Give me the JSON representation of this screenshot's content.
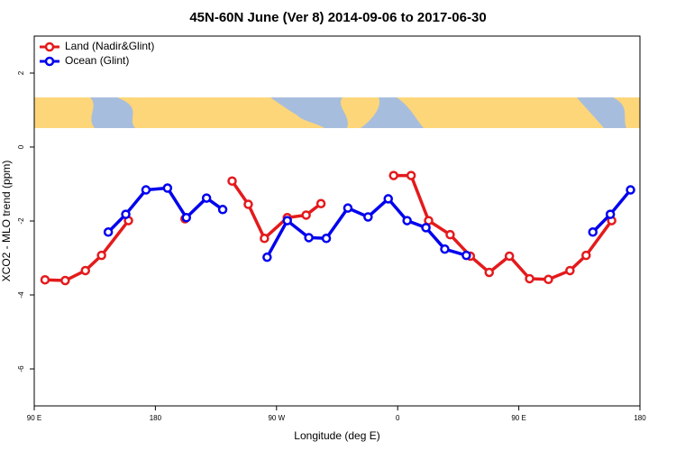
{
  "chart_data": {
    "type": "line",
    "title": "45N-60N June (Ver 8)   2014-09-06 to 2017-06-30",
    "x_label": "Longitude (deg E)",
    "y_label": "XCO2 - MLO trend (ppm)",
    "xlim": [
      90,
      540
    ],
    "xticks": [
      {
        "value": 90,
        "label": "90 E"
      },
      180,
      {
        "value": 270,
        "label": "90 W"
      },
      {
        "value": 360,
        "label": "0"
      },
      {
        "value": 450,
        "label": "90 E"
      },
      {
        "value": 540,
        "label": "180"
      }
    ],
    "ylim": [
      -7,
      3
    ],
    "yticks": [
      -6,
      -4,
      -2,
      0,
      2
    ],
    "legend": "top-left",
    "series": [
      {
        "name": "Land (Nadir&Glint)",
        "color": "#e41a1c",
        "x": [
          98,
          113,
          128,
          140,
          160,
          null,
          202,
          null,
          237,
          249,
          261,
          278,
          292,
          303,
          null,
          357,
          370,
          383,
          399,
          414,
          428,
          443,
          458,
          472,
          488,
          500,
          519
        ],
        "values": [
          -3.59,
          -3.61,
          -3.34,
          -2.93,
          -1.99,
          null,
          -1.94,
          null,
          -0.92,
          -1.55,
          -2.47,
          -1.91,
          -1.84,
          -1.53,
          null,
          -0.77,
          -0.77,
          -1.99,
          -2.37,
          -2.95,
          -3.39,
          -2.95,
          -3.56,
          -3.58,
          -3.34,
          -2.93,
          -1.99
        ]
      },
      {
        "name": "Ocean (Glint)",
        "color": "#0000ee",
        "x": [
          145,
          158,
          173,
          189,
          203,
          218,
          230,
          null,
          263,
          278,
          294,
          307,
          323,
          338,
          353,
          367,
          381,
          395,
          411,
          null,
          505,
          518,
          533
        ],
        "values": [
          -2.3,
          -1.82,
          -1.16,
          -1.11,
          -1.91,
          -1.38,
          -1.69,
          null,
          -2.98,
          -1.99,
          -2.45,
          -2.47,
          -1.65,
          -1.89,
          -1.4,
          -1.99,
          -2.18,
          -2.76,
          -2.93,
          null,
          -2.3,
          -1.82,
          -1.16
        ]
      }
    ]
  }
}
